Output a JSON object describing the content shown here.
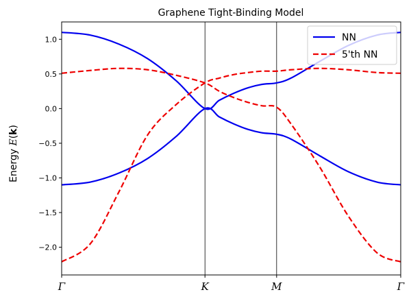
{
  "chart_data": {
    "type": "line",
    "title": "Graphene Tight-Binding Model",
    "ylabel": "Energy E(k)",
    "xlabel": "",
    "ylim": [
      -2.4,
      1.25
    ],
    "yticks": [
      -2.0,
      -1.5,
      -1.0,
      -0.5,
      0.0,
      0.5,
      1.0
    ],
    "ytick_labels": [
      "−2.0",
      "−1.5",
      "−1.0",
      "−0.5",
      "0.0",
      "0.5",
      "1.0"
    ],
    "xticks": [
      0,
      1,
      1.5,
      2.366
    ],
    "xtick_labels": [
      "Γ",
      "K",
      "M",
      "Γ"
    ],
    "vlines": [
      1,
      1.5
    ],
    "legend_position": "top-right",
    "grid": false,
    "series": [
      {
        "name": "NN",
        "style": "solid",
        "color": "#0000ee",
        "bands": [
          {
            "x": [
              0,
              0.2,
              0.4,
              0.6,
              0.8,
              1.0,
              1.1,
              1.2,
              1.3,
              1.4,
              1.5,
              1.6,
              1.8,
              2.0,
              2.2,
              2.366
            ],
            "y": [
              1.1,
              1.06,
              0.93,
              0.72,
              0.4,
              0.0,
              0.12,
              0.22,
              0.3,
              0.35,
              0.37,
              0.44,
              0.68,
              0.91,
              1.06,
              1.1
            ]
          },
          {
            "x": [
              0,
              0.2,
              0.4,
              0.6,
              0.8,
              1.0,
              1.1,
              1.2,
              1.3,
              1.4,
              1.5,
              1.6,
              1.8,
              2.0,
              2.2,
              2.366
            ],
            "y": [
              -1.1,
              -1.06,
              -0.93,
              -0.72,
              -0.4,
              0.0,
              -0.12,
              -0.22,
              -0.3,
              -0.35,
              -0.37,
              -0.44,
              -0.68,
              -0.91,
              -1.06,
              -1.1
            ]
          }
        ]
      },
      {
        "name": "5'th NN",
        "style": "dashed",
        "color": "#ee0000",
        "bands": [
          {
            "x": [
              0,
              0.2,
              0.4,
              0.6,
              0.8,
              1.0,
              1.1,
              1.2,
              1.3,
              1.4,
              1.5,
              1.6,
              1.8,
              2.0,
              2.2,
              2.366
            ],
            "y": [
              0.51,
              0.55,
              0.58,
              0.56,
              0.48,
              0.37,
              0.25,
              0.16,
              0.09,
              0.04,
              0.02,
              -0.22,
              -0.84,
              -1.55,
              -2.08,
              -2.21
            ]
          },
          {
            "x": [
              0,
              0.2,
              0.4,
              0.6,
              0.8,
              1.0,
              1.1,
              1.2,
              1.3,
              1.4,
              1.5,
              1.6,
              1.8,
              2.0,
              2.2,
              2.366
            ],
            "y": [
              -2.21,
              -1.95,
              -1.2,
              -0.38,
              0.06,
              0.37,
              0.44,
              0.49,
              0.52,
              0.54,
              0.54,
              0.56,
              0.58,
              0.56,
              0.52,
              0.51
            ]
          }
        ]
      }
    ]
  }
}
